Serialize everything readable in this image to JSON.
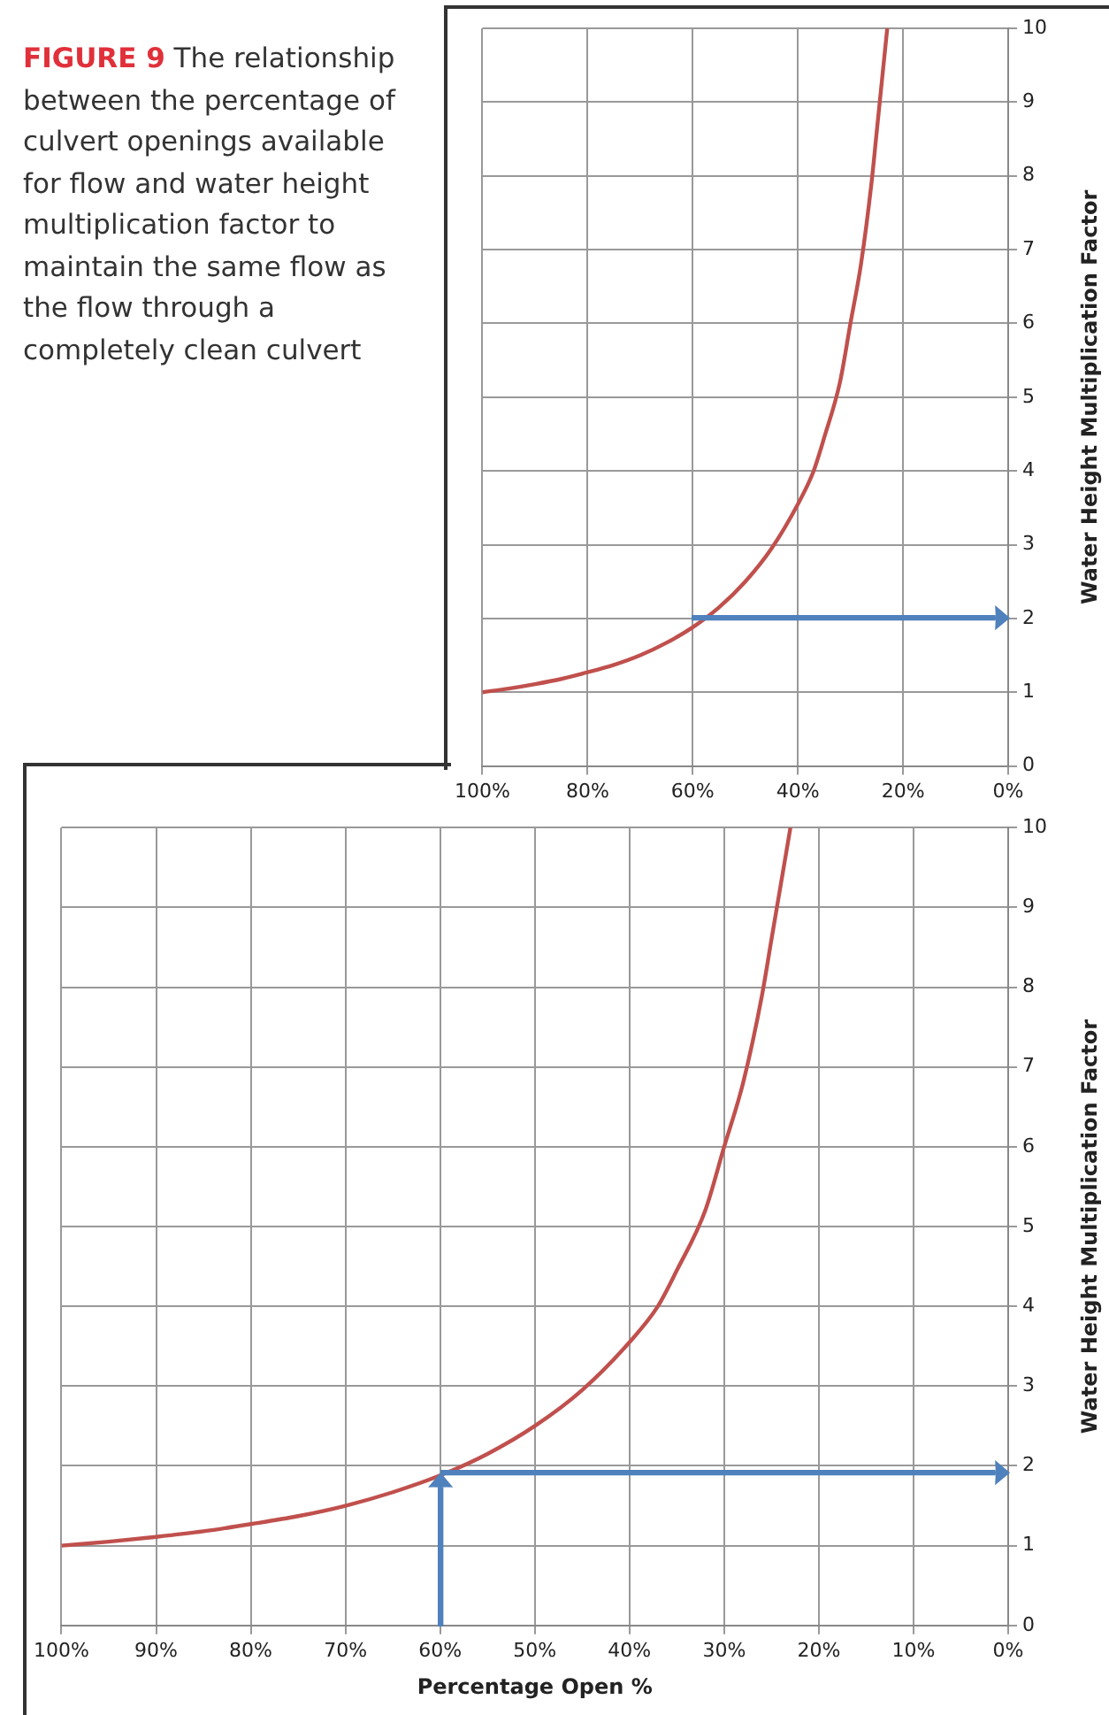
{
  "chart_data": [
    {
      "type": "line",
      "title": "FIGURE 9 The relationship between the percentage of culvert openings available for flow and water height multiplication factor to maintain the same flow as the flow through a completely clean culvert",
      "ylabel": "Water Height Multiplication Factor",
      "x": [
        100,
        95,
        90,
        85,
        80,
        75,
        70,
        65,
        60,
        55,
        50,
        45,
        40,
        37,
        35,
        32,
        30,
        28,
        26,
        25,
        24,
        23
      ],
      "series": [
        {
          "color": "#c0504d",
          "values": [
            1.0,
            1.05,
            1.11,
            1.18,
            1.27,
            1.37,
            1.5,
            1.67,
            1.88,
            2.15,
            2.5,
            2.95,
            3.55,
            4.0,
            4.45,
            5.2,
            6.0,
            6.8,
            7.9,
            8.6,
            9.3,
            10.0
          ]
        }
      ],
      "xlim": [
        100,
        0
      ],
      "xticks": [
        {
          "value": 100,
          "label": "100%"
        },
        {
          "value": 80,
          "label": "80%"
        },
        {
          "value": 60,
          "label": "60%"
        },
        {
          "value": 40,
          "label": "40%"
        },
        {
          "value": 20,
          "label": "20%"
        },
        {
          "value": 0,
          "label": "0%"
        }
      ],
      "ylim": [
        0,
        10
      ],
      "yticks": [
        0,
        1,
        2,
        3,
        4,
        5,
        6,
        7,
        8,
        9,
        10
      ],
      "grid": true,
      "legend": false,
      "marker": "none",
      "line_style": "solid"
    },
    {
      "type": "line",
      "xlabel": "Percentage Open %",
      "ylabel": "Water Height Multiplication Factor",
      "x": [
        100,
        95,
        90,
        85,
        80,
        75,
        70,
        65,
        60,
        55,
        50,
        45,
        40,
        37,
        35,
        32,
        30,
        28,
        26,
        25,
        24,
        23
      ],
      "series": [
        {
          "color": "#c0504d",
          "values": [
            1.0,
            1.05,
            1.11,
            1.18,
            1.27,
            1.37,
            1.5,
            1.67,
            1.88,
            2.15,
            2.5,
            2.95,
            3.55,
            4.0,
            4.45,
            5.2,
            6.0,
            6.8,
            7.9,
            8.6,
            9.3,
            10.0
          ]
        }
      ],
      "xlim": [
        100,
        0
      ],
      "xticks": [
        {
          "value": 100,
          "label": "100%"
        },
        {
          "value": 90,
          "label": "90%"
        },
        {
          "value": 80,
          "label": "80%"
        },
        {
          "value": 70,
          "label": "70%"
        },
        {
          "value": 60,
          "label": "60%"
        },
        {
          "value": 50,
          "label": "50%"
        },
        {
          "value": 40,
          "label": "40%"
        },
        {
          "value": 30,
          "label": "30%"
        },
        {
          "value": 20,
          "label": "20%"
        },
        {
          "value": 10,
          "label": "10%"
        },
        {
          "value": 0,
          "label": "0%"
        }
      ],
      "ylim": [
        0,
        10
      ],
      "yticks": [
        0,
        1,
        2,
        3,
        4,
        5,
        6,
        7,
        8,
        9,
        10
      ],
      "grid": true,
      "legend": false,
      "marker": "none",
      "line_style": "solid"
    }
  ]
}
